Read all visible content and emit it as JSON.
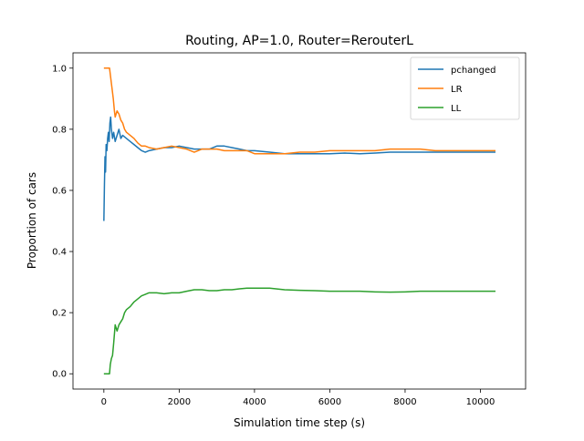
{
  "chart_data": {
    "type": "line",
    "title": "Routing, AP=1.0, Router=RerouterL",
    "xlabel": "Simulation time step (s)",
    "ylabel": "Proportion of cars",
    "xlim": [
      -820,
      11200
    ],
    "ylim": [
      -0.05,
      1.05
    ],
    "xticks": [
      {
        "value": 0,
        "label": "0"
      },
      {
        "value": 2000,
        "label": "2000"
      },
      {
        "value": 4000,
        "label": "4000"
      },
      {
        "value": 6000,
        "label": "6000"
      },
      {
        "value": 8000,
        "label": "8000"
      },
      {
        "value": 10000,
        "label": "10000"
      }
    ],
    "yticks": [
      {
        "value": 0.0,
        "label": "0.0"
      },
      {
        "value": 0.2,
        "label": "0.2"
      },
      {
        "value": 0.4,
        "label": "0.4"
      },
      {
        "value": 0.6,
        "label": "0.6"
      },
      {
        "value": 0.8,
        "label": "0.8"
      },
      {
        "value": 1.0,
        "label": "1.0"
      }
    ],
    "grid": false,
    "legend": {
      "position": "top-right"
    },
    "series": [
      {
        "name": "pchanged",
        "color": "#1f77b4",
        "x": [
          0,
          15,
          30,
          45,
          60,
          80,
          100,
          120,
          140,
          160,
          180,
          200,
          230,
          260,
          300,
          350,
          400,
          450,
          500,
          600,
          700,
          800,
          900,
          1000,
          1100,
          1200,
          1400,
          1600,
          1800,
          2000,
          2200,
          2400,
          2600,
          2800,
          3000,
          3200,
          3400,
          3600,
          3800,
          4000,
          4400,
          4800,
          5200,
          5600,
          6000,
          6400,
          6800,
          7200,
          7600,
          8000,
          8400,
          8800,
          9200,
          9600,
          10000,
          10400
        ],
        "y": [
          0.5,
          0.62,
          0.71,
          0.66,
          0.75,
          0.73,
          0.77,
          0.79,
          0.76,
          0.82,
          0.84,
          0.8,
          0.77,
          0.79,
          0.76,
          0.78,
          0.8,
          0.77,
          0.78,
          0.77,
          0.76,
          0.75,
          0.74,
          0.73,
          0.725,
          0.73,
          0.735,
          0.74,
          0.74,
          0.745,
          0.74,
          0.735,
          0.735,
          0.735,
          0.745,
          0.745,
          0.74,
          0.735,
          0.73,
          0.73,
          0.725,
          0.72,
          0.72,
          0.72,
          0.72,
          0.722,
          0.72,
          0.722,
          0.725,
          0.725,
          0.725,
          0.725,
          0.725,
          0.725,
          0.725,
          0.725
        ]
      },
      {
        "name": "LR",
        "color": "#ff7f0e",
        "x": [
          0,
          100,
          150,
          200,
          220,
          250,
          280,
          300,
          350,
          400,
          450,
          500,
          550,
          600,
          700,
          800,
          900,
          1000,
          1100,
          1200,
          1400,
          1600,
          1800,
          2000,
          2200,
          2400,
          2600,
          2800,
          3000,
          3200,
          3400,
          3600,
          3800,
          4000,
          4400,
          4800,
          5200,
          5600,
          6000,
          6400,
          6800,
          7200,
          7600,
          8000,
          8400,
          8800,
          9200,
          9600,
          10000,
          10400
        ],
        "y": [
          1.0,
          1.0,
          1.0,
          0.95,
          0.93,
          0.9,
          0.86,
          0.84,
          0.86,
          0.85,
          0.83,
          0.82,
          0.8,
          0.79,
          0.78,
          0.77,
          0.755,
          0.745,
          0.745,
          0.74,
          0.735,
          0.74,
          0.745,
          0.74,
          0.735,
          0.725,
          0.735,
          0.735,
          0.735,
          0.73,
          0.73,
          0.73,
          0.73,
          0.72,
          0.72,
          0.72,
          0.725,
          0.725,
          0.73,
          0.73,
          0.73,
          0.73,
          0.735,
          0.735,
          0.735,
          0.73,
          0.73,
          0.73,
          0.73,
          0.73
        ]
      },
      {
        "name": "LL",
        "color": "#2ca02c",
        "x": [
          0,
          100,
          150,
          170,
          200,
          230,
          260,
          300,
          350,
          400,
          450,
          500,
          550,
          600,
          700,
          800,
          900,
          1000,
          1100,
          1200,
          1400,
          1600,
          1800,
          2000,
          2200,
          2400,
          2600,
          2800,
          3000,
          3200,
          3400,
          3600,
          3800,
          4000,
          4400,
          4800,
          5200,
          5600,
          6000,
          6400,
          6800,
          7200,
          7600,
          8000,
          8400,
          8800,
          9200,
          9600,
          10000,
          10400
        ],
        "y": [
          0.0,
          0.0,
          0.0,
          0.03,
          0.05,
          0.06,
          0.1,
          0.16,
          0.14,
          0.16,
          0.17,
          0.18,
          0.2,
          0.21,
          0.22,
          0.235,
          0.245,
          0.255,
          0.26,
          0.265,
          0.265,
          0.262,
          0.265,
          0.265,
          0.27,
          0.275,
          0.275,
          0.272,
          0.272,
          0.275,
          0.275,
          0.278,
          0.28,
          0.28,
          0.28,
          0.275,
          0.273,
          0.272,
          0.27,
          0.27,
          0.27,
          0.268,
          0.267,
          0.268,
          0.27,
          0.27,
          0.27,
          0.27,
          0.27,
          0.27
        ]
      }
    ]
  }
}
